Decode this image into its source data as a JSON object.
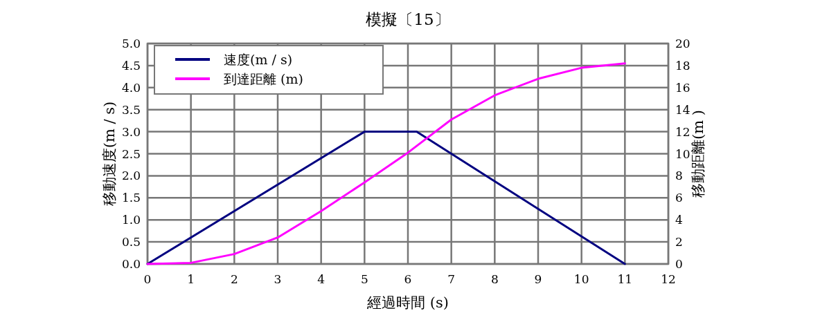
{
  "chart_data": {
    "type": "line",
    "title": "模擬〔15〕",
    "xlabel": "經過時間 (s)",
    "ylabel": "移動速度(m / s)",
    "y2label": "移動距離(m )",
    "series": [
      {
        "name": "速度(m / s)",
        "color": "#000080",
        "x": [
          0,
          5,
          6.2,
          11
        ],
        "values": [
          0,
          3.0,
          3.0,
          0
        ]
      },
      {
        "name": "到達距離 (m)",
        "color": "#ff00ff",
        "axis": "y2",
        "x": [
          0,
          1,
          2,
          3,
          4,
          5,
          6,
          7,
          8,
          9,
          10,
          11
        ],
        "values": [
          0,
          0.1,
          0.9,
          2.4,
          4.8,
          7.4,
          10.1,
          13.1,
          15.3,
          16.8,
          17.8,
          18.2
        ]
      }
    ],
    "xlim": [
      0,
      12
    ],
    "xticks": [
      0,
      1,
      2,
      3,
      4,
      5,
      6,
      7,
      8,
      9,
      10,
      11,
      12
    ],
    "ylim": [
      0,
      5
    ],
    "yticks": [
      {
        "value": 0,
        "label": "0.0"
      },
      0.5,
      {
        "value": 1,
        "label": "1.0"
      },
      1.5,
      {
        "value": 2,
        "label": "2.0"
      },
      2.5,
      {
        "value": 3,
        "label": "3.0"
      },
      3.5,
      {
        "value": 4,
        "label": "4.0"
      },
      4.5,
      {
        "value": 5,
        "label": "5.0"
      }
    ],
    "y2lim": [
      0,
      20
    ],
    "y2ticks": [
      0,
      2,
      4,
      6,
      8,
      10,
      12,
      14,
      16,
      18,
      20
    ],
    "grid": true,
    "legend": "top left",
    "marker": "none",
    "line_style": "solid"
  }
}
